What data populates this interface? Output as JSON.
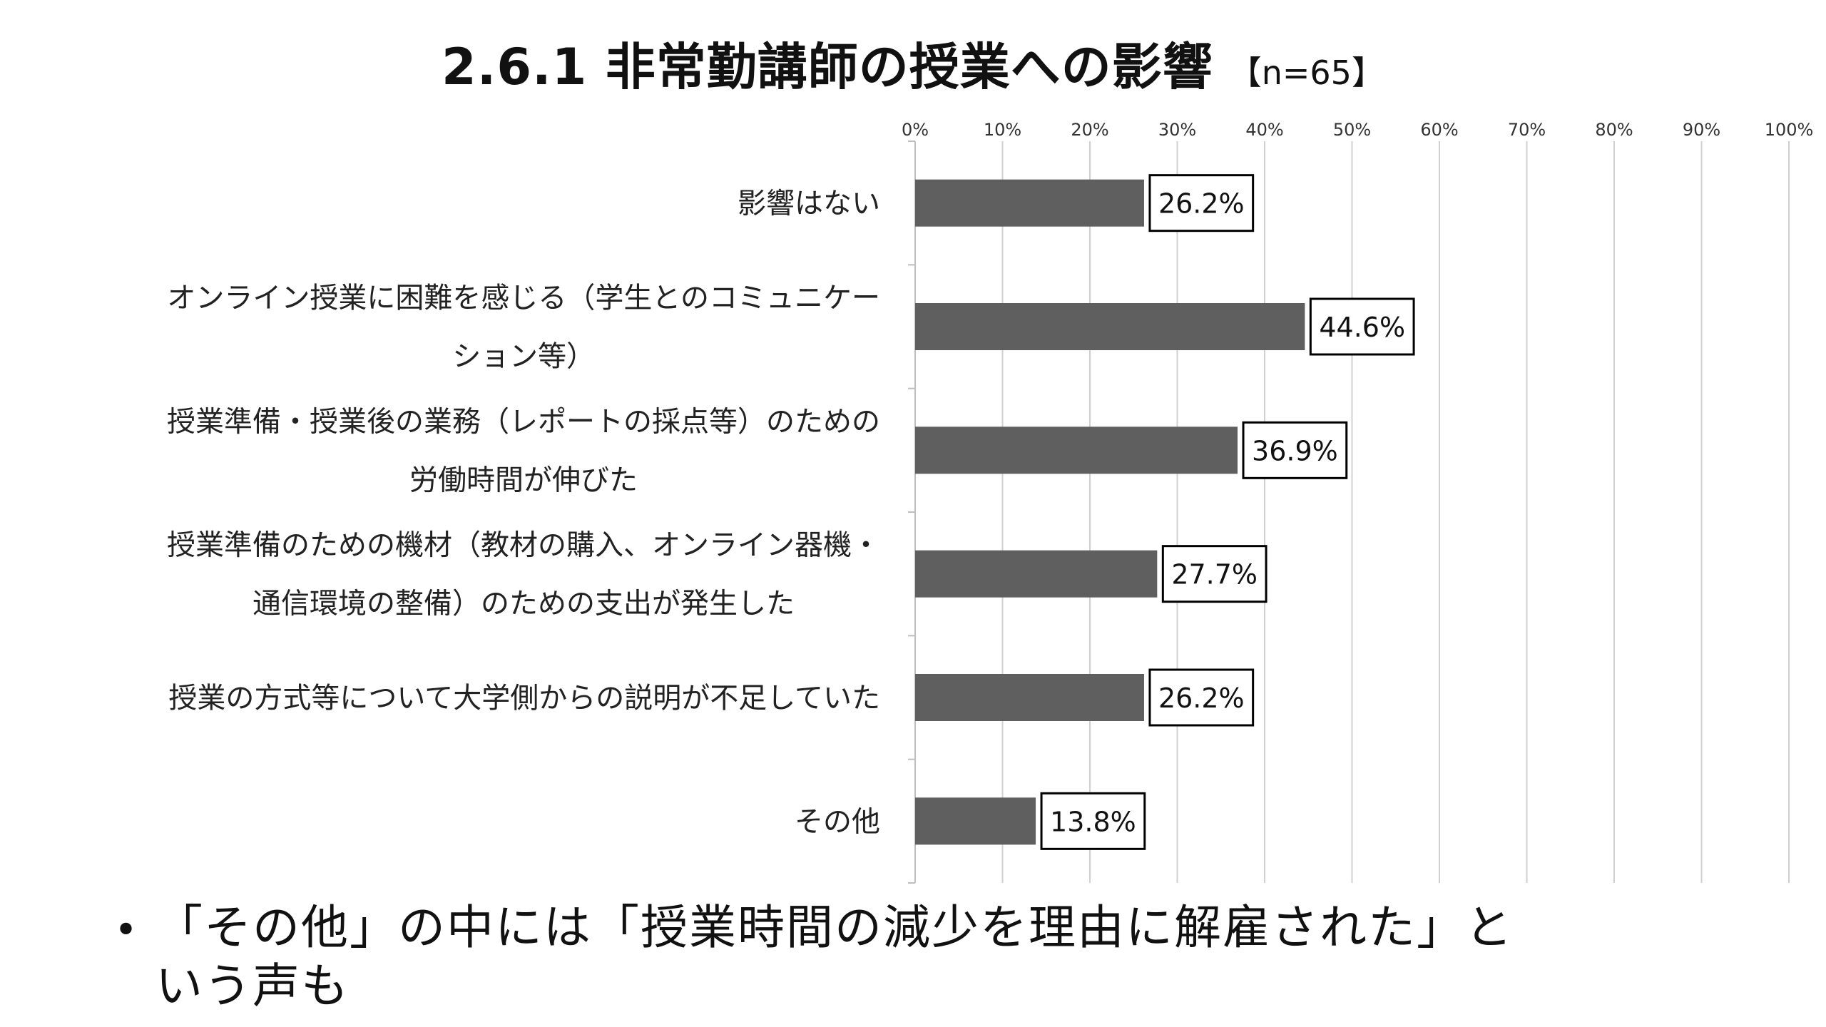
{
  "title": {
    "main": "2.6.1 非常勤講師の授業への影響",
    "sub": "【n=65】"
  },
  "chart_data": {
    "type": "bar",
    "orientation": "horizontal",
    "categories": [
      [
        "影響はない"
      ],
      [
        "オンライン授業に困難を感じる（学生とのコミュニケー",
        "ション等）"
      ],
      [
        "授業準備・授業後の業務（レポートの採点等）のための",
        "労働時間が伸びた"
      ],
      [
        "授業準備のための機材（教材の購入、オンライン器機・",
        "通信環境の整備）のための支出が発生した"
      ],
      [
        "授業の方式等について大学側からの説明が不足していた"
      ],
      [
        "その他"
      ]
    ],
    "values": [
      26.2,
      44.6,
      36.9,
      27.7,
      26.2,
      13.8
    ],
    "data_labels": [
      "26.2%",
      "44.6%",
      "36.9%",
      "27.7%",
      "26.2%",
      "13.8%"
    ],
    "xlim": [
      0,
      100
    ],
    "ticks": [
      0,
      10,
      20,
      30,
      40,
      50,
      60,
      70,
      80,
      90,
      100
    ],
    "tick_labels": [
      "0%",
      "10%",
      "20%",
      "30%",
      "40%",
      "50%",
      "60%",
      "70%",
      "80%",
      "90%",
      "100%"
    ],
    "axis_position": "top",
    "grid": true,
    "legend": "none",
    "colors": {
      "bar": "#5f5f5f",
      "grid": "#d0d0d0",
      "axis": "#bfbfbf"
    }
  },
  "note": {
    "bullet": "•",
    "line1": "「その他」の中には「授業時間の減少を理由に解雇された」と",
    "line2": "いう声も"
  }
}
